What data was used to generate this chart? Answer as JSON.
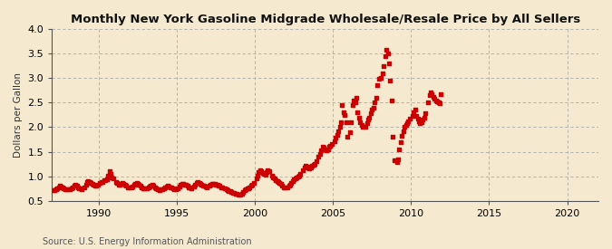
{
  "title": "Monthly New York Gasoline Midgrade Wholesale/Resale Price by All Sellers",
  "ylabel": "Dollars per Gallon",
  "source": "Source: U.S. Energy Information Administration",
  "background_color": "#f5ead0",
  "marker_color": "#cc0000",
  "marker": "s",
  "markersize": 3.0,
  "xlim": [
    1987.0,
    2022.0
  ],
  "ylim": [
    0.5,
    4.0
  ],
  "yticks": [
    0.5,
    1.0,
    1.5,
    2.0,
    2.5,
    3.0,
    3.5,
    4.0
  ],
  "xticks": [
    1990,
    1995,
    2000,
    2005,
    2010,
    2015,
    2020
  ],
  "data": [
    [
      1987.08,
      0.72
    ],
    [
      1987.17,
      0.71
    ],
    [
      1987.25,
      0.74
    ],
    [
      1987.33,
      0.76
    ],
    [
      1987.42,
      0.78
    ],
    [
      1987.5,
      0.8
    ],
    [
      1987.58,
      0.79
    ],
    [
      1987.67,
      0.77
    ],
    [
      1987.75,
      0.75
    ],
    [
      1987.83,
      0.74
    ],
    [
      1987.92,
      0.73
    ],
    [
      1988.08,
      0.73
    ],
    [
      1988.17,
      0.74
    ],
    [
      1988.25,
      0.76
    ],
    [
      1988.33,
      0.78
    ],
    [
      1988.42,
      0.8
    ],
    [
      1988.5,
      0.82
    ],
    [
      1988.58,
      0.8
    ],
    [
      1988.67,
      0.78
    ],
    [
      1988.75,
      0.76
    ],
    [
      1988.83,
      0.75
    ],
    [
      1988.92,
      0.74
    ],
    [
      1989.08,
      0.77
    ],
    [
      1989.17,
      0.82
    ],
    [
      1989.25,
      0.88
    ],
    [
      1989.33,
      0.9
    ],
    [
      1989.42,
      0.89
    ],
    [
      1989.5,
      0.87
    ],
    [
      1989.58,
      0.85
    ],
    [
      1989.67,
      0.83
    ],
    [
      1989.75,
      0.81
    ],
    [
      1989.83,
      0.8
    ],
    [
      1989.92,
      0.82
    ],
    [
      1990.08,
      0.86
    ],
    [
      1990.17,
      0.88
    ],
    [
      1990.25,
      0.89
    ],
    [
      1990.33,
      0.91
    ],
    [
      1990.42,
      0.92
    ],
    [
      1990.5,
      0.94
    ],
    [
      1990.58,
      1.02
    ],
    [
      1990.67,
      1.1
    ],
    [
      1990.75,
      1.05
    ],
    [
      1990.83,
      0.98
    ],
    [
      1990.92,
      0.95
    ],
    [
      1991.08,
      0.89
    ],
    [
      1991.17,
      0.86
    ],
    [
      1991.25,
      0.83
    ],
    [
      1991.33,
      0.82
    ],
    [
      1991.42,
      0.84
    ],
    [
      1991.5,
      0.86
    ],
    [
      1991.58,
      0.85
    ],
    [
      1991.67,
      0.83
    ],
    [
      1991.75,
      0.8
    ],
    [
      1991.83,
      0.78
    ],
    [
      1991.92,
      0.77
    ],
    [
      1992.08,
      0.77
    ],
    [
      1992.17,
      0.79
    ],
    [
      1992.25,
      0.82
    ],
    [
      1992.33,
      0.84
    ],
    [
      1992.42,
      0.86
    ],
    [
      1992.5,
      0.85
    ],
    [
      1992.58,
      0.83
    ],
    [
      1992.67,
      0.8
    ],
    [
      1992.75,
      0.78
    ],
    [
      1992.83,
      0.76
    ],
    [
      1992.92,
      0.75
    ],
    [
      1993.08,
      0.75
    ],
    [
      1993.17,
      0.77
    ],
    [
      1993.25,
      0.79
    ],
    [
      1993.33,
      0.8
    ],
    [
      1993.42,
      0.82
    ],
    [
      1993.5,
      0.8
    ],
    [
      1993.58,
      0.78
    ],
    [
      1993.67,
      0.76
    ],
    [
      1993.75,
      0.74
    ],
    [
      1993.83,
      0.73
    ],
    [
      1993.92,
      0.72
    ],
    [
      1994.08,
      0.73
    ],
    [
      1994.17,
      0.75
    ],
    [
      1994.25,
      0.77
    ],
    [
      1994.33,
      0.79
    ],
    [
      1994.42,
      0.8
    ],
    [
      1994.5,
      0.79
    ],
    [
      1994.58,
      0.78
    ],
    [
      1994.67,
      0.77
    ],
    [
      1994.75,
      0.75
    ],
    [
      1994.83,
      0.74
    ],
    [
      1994.92,
      0.73
    ],
    [
      1995.08,
      0.76
    ],
    [
      1995.17,
      0.79
    ],
    [
      1995.25,
      0.82
    ],
    [
      1995.33,
      0.84
    ],
    [
      1995.42,
      0.85
    ],
    [
      1995.5,
      0.83
    ],
    [
      1995.58,
      0.82
    ],
    [
      1995.67,
      0.8
    ],
    [
      1995.75,
      0.78
    ],
    [
      1995.83,
      0.77
    ],
    [
      1995.92,
      0.76
    ],
    [
      1996.08,
      0.79
    ],
    [
      1996.17,
      0.83
    ],
    [
      1996.25,
      0.86
    ],
    [
      1996.33,
      0.89
    ],
    [
      1996.42,
      0.87
    ],
    [
      1996.5,
      0.85
    ],
    [
      1996.58,
      0.83
    ],
    [
      1996.67,
      0.81
    ],
    [
      1996.75,
      0.8
    ],
    [
      1996.83,
      0.79
    ],
    [
      1996.92,
      0.78
    ],
    [
      1997.08,
      0.8
    ],
    [
      1997.17,
      0.82
    ],
    [
      1997.25,
      0.84
    ],
    [
      1997.33,
      0.85
    ],
    [
      1997.42,
      0.84
    ],
    [
      1997.5,
      0.83
    ],
    [
      1997.58,
      0.82
    ],
    [
      1997.67,
      0.81
    ],
    [
      1997.75,
      0.8
    ],
    [
      1997.83,
      0.78
    ],
    [
      1997.92,
      0.77
    ],
    [
      1998.08,
      0.75
    ],
    [
      1998.17,
      0.73
    ],
    [
      1998.25,
      0.71
    ],
    [
      1998.33,
      0.7
    ],
    [
      1998.42,
      0.69
    ],
    [
      1998.5,
      0.68
    ],
    [
      1998.58,
      0.67
    ],
    [
      1998.67,
      0.66
    ],
    [
      1998.75,
      0.65
    ],
    [
      1998.83,
      0.64
    ],
    [
      1998.92,
      0.63
    ],
    [
      1999.08,
      0.63
    ],
    [
      1999.17,
      0.65
    ],
    [
      1999.25,
      0.68
    ],
    [
      1999.33,
      0.71
    ],
    [
      1999.42,
      0.73
    ],
    [
      1999.5,
      0.75
    ],
    [
      1999.58,
      0.76
    ],
    [
      1999.67,
      0.78
    ],
    [
      1999.75,
      0.8
    ],
    [
      1999.83,
      0.83
    ],
    [
      1999.92,
      0.86
    ],
    [
      2000.08,
      0.95
    ],
    [
      2000.17,
      1.02
    ],
    [
      2000.25,
      1.08
    ],
    [
      2000.33,
      1.12
    ],
    [
      2000.42,
      1.1
    ],
    [
      2000.5,
      1.07
    ],
    [
      2000.58,
      1.05
    ],
    [
      2000.67,
      1.03
    ],
    [
      2000.75,
      1.08
    ],
    [
      2000.83,
      1.12
    ],
    [
      2000.92,
      1.1
    ],
    [
      2001.08,
      1.02
    ],
    [
      2001.17,
      0.98
    ],
    [
      2001.25,
      0.95
    ],
    [
      2001.33,
      0.92
    ],
    [
      2001.42,
      0.9
    ],
    [
      2001.5,
      0.88
    ],
    [
      2001.58,
      0.86
    ],
    [
      2001.67,
      0.84
    ],
    [
      2001.75,
      0.8
    ],
    [
      2001.83,
      0.78
    ],
    [
      2001.92,
      0.77
    ],
    [
      2002.08,
      0.78
    ],
    [
      2002.17,
      0.8
    ],
    [
      2002.25,
      0.83
    ],
    [
      2002.33,
      0.87
    ],
    [
      2002.42,
      0.9
    ],
    [
      2002.5,
      0.93
    ],
    [
      2002.58,
      0.95
    ],
    [
      2002.67,
      0.98
    ],
    [
      2002.75,
      1.0
    ],
    [
      2002.83,
      1.02
    ],
    [
      2002.92,
      1.05
    ],
    [
      2003.08,
      1.12
    ],
    [
      2003.17,
      1.18
    ],
    [
      2003.25,
      1.22
    ],
    [
      2003.33,
      1.2
    ],
    [
      2003.42,
      1.18
    ],
    [
      2003.5,
      1.16
    ],
    [
      2003.58,
      1.18
    ],
    [
      2003.67,
      1.22
    ],
    [
      2003.75,
      1.24
    ],
    [
      2003.83,
      1.26
    ],
    [
      2003.92,
      1.3
    ],
    [
      2004.08,
      1.4
    ],
    [
      2004.17,
      1.45
    ],
    [
      2004.25,
      1.52
    ],
    [
      2004.33,
      1.6
    ],
    [
      2004.42,
      1.58
    ],
    [
      2004.5,
      1.55
    ],
    [
      2004.58,
      1.52
    ],
    [
      2004.67,
      1.55
    ],
    [
      2004.75,
      1.6
    ],
    [
      2004.83,
      1.62
    ],
    [
      2004.92,
      1.65
    ],
    [
      2005.08,
      1.72
    ],
    [
      2005.17,
      1.78
    ],
    [
      2005.25,
      1.85
    ],
    [
      2005.33,
      1.92
    ],
    [
      2005.42,
      2.0
    ],
    [
      2005.5,
      2.1
    ],
    [
      2005.58,
      2.45
    ],
    [
      2005.67,
      2.3
    ],
    [
      2005.75,
      2.25
    ],
    [
      2005.83,
      2.1
    ],
    [
      2005.92,
      1.8
    ],
    [
      2006.08,
      1.9
    ],
    [
      2006.17,
      2.1
    ],
    [
      2006.25,
      2.45
    ],
    [
      2006.33,
      2.55
    ],
    [
      2006.42,
      2.5
    ],
    [
      2006.5,
      2.6
    ],
    [
      2006.58,
      2.3
    ],
    [
      2006.67,
      2.2
    ],
    [
      2006.75,
      2.1
    ],
    [
      2006.83,
      2.05
    ],
    [
      2006.92,
      2.0
    ],
    [
      2007.08,
      2.0
    ],
    [
      2007.17,
      2.08
    ],
    [
      2007.25,
      2.15
    ],
    [
      2007.33,
      2.2
    ],
    [
      2007.42,
      2.28
    ],
    [
      2007.5,
      2.35
    ],
    [
      2007.58,
      2.4
    ],
    [
      2007.67,
      2.5
    ],
    [
      2007.75,
      2.6
    ],
    [
      2007.83,
      2.85
    ],
    [
      2007.92,
      2.98
    ],
    [
      2008.08,
      3.0
    ],
    [
      2008.17,
      3.1
    ],
    [
      2008.25,
      3.25
    ],
    [
      2008.33,
      3.45
    ],
    [
      2008.42,
      3.58
    ],
    [
      2008.5,
      3.5
    ],
    [
      2008.58,
      3.3
    ],
    [
      2008.67,
      2.95
    ],
    [
      2008.75,
      2.55
    ],
    [
      2008.83,
      1.8
    ],
    [
      2008.92,
      1.32
    ],
    [
      2009.08,
      1.28
    ],
    [
      2009.17,
      1.35
    ],
    [
      2009.25,
      1.55
    ],
    [
      2009.33,
      1.7
    ],
    [
      2009.42,
      1.82
    ],
    [
      2009.5,
      1.92
    ],
    [
      2009.58,
      2.0
    ],
    [
      2009.67,
      2.05
    ],
    [
      2009.75,
      2.08
    ],
    [
      2009.83,
      2.12
    ],
    [
      2009.92,
      2.18
    ],
    [
      2010.08,
      2.22
    ],
    [
      2010.17,
      2.3
    ],
    [
      2010.25,
      2.35
    ],
    [
      2010.33,
      2.22
    ],
    [
      2010.42,
      2.18
    ],
    [
      2010.5,
      2.12
    ],
    [
      2010.58,
      2.08
    ],
    [
      2010.67,
      2.1
    ],
    [
      2010.75,
      2.15
    ],
    [
      2010.83,
      2.2
    ],
    [
      2010.92,
      2.28
    ],
    [
      2011.08,
      2.5
    ],
    [
      2011.17,
      2.65
    ],
    [
      2011.25,
      2.7
    ],
    [
      2011.33,
      2.68
    ],
    [
      2011.42,
      2.62
    ],
    [
      2011.5,
      2.58
    ],
    [
      2011.58,
      2.55
    ],
    [
      2011.67,
      2.52
    ],
    [
      2011.75,
      2.5
    ],
    [
      2011.83,
      2.48
    ],
    [
      2011.92,
      2.68
    ]
  ]
}
